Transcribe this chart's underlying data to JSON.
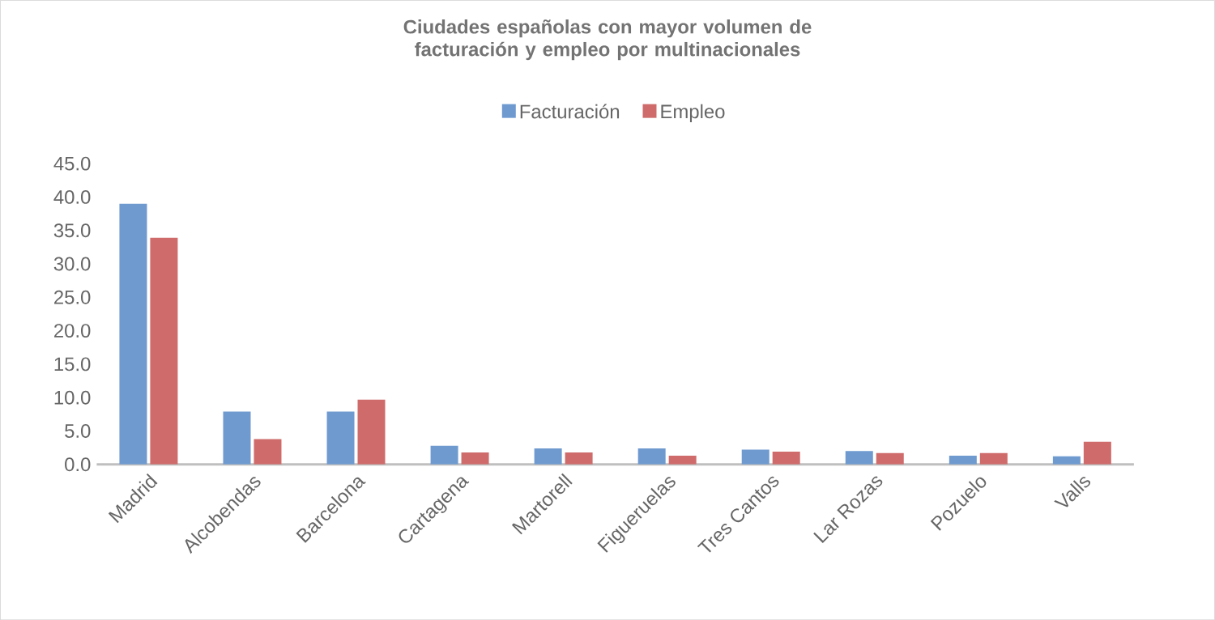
{
  "chart_data": {
    "type": "bar",
    "title": "Ciudades españolas con mayor volumen de facturación y empleo por multinacionales",
    "categories": [
      "Madrid",
      "Alcobendas",
      "Barcelona",
      "Cartagena",
      "Martorell",
      "Figueruelas",
      "Tres Cantos",
      "Lar Rozas",
      "Pozuelo",
      "Valls"
    ],
    "series": [
      {
        "name": "Facturación",
        "color": "#6e9ad0",
        "values": [
          39.0,
          7.9,
          7.9,
          2.8,
          2.4,
          2.4,
          2.2,
          2.0,
          1.3,
          1.2
        ]
      },
      {
        "name": "Empleo",
        "color": "#cf6b6b",
        "values": [
          33.9,
          3.8,
          9.7,
          1.8,
          1.8,
          1.3,
          1.9,
          1.7,
          1.7,
          3.4
        ]
      }
    ],
    "ylim": [
      0,
      45
    ],
    "yticks": [
      {
        "value": 0,
        "label": "0.0"
      },
      {
        "value": 5,
        "label": "5.0"
      },
      {
        "value": 10,
        "label": "10.0"
      },
      {
        "value": 15,
        "label": "15.0"
      },
      {
        "value": 20,
        "label": "20.0"
      },
      {
        "value": 25,
        "label": "25.0"
      },
      {
        "value": 30,
        "label": "30.0"
      },
      {
        "value": 35,
        "label": "35.0"
      },
      {
        "value": 40,
        "label": "40.0"
      },
      {
        "value": 45,
        "label": "45.0"
      }
    ],
    "legend": "top"
  }
}
